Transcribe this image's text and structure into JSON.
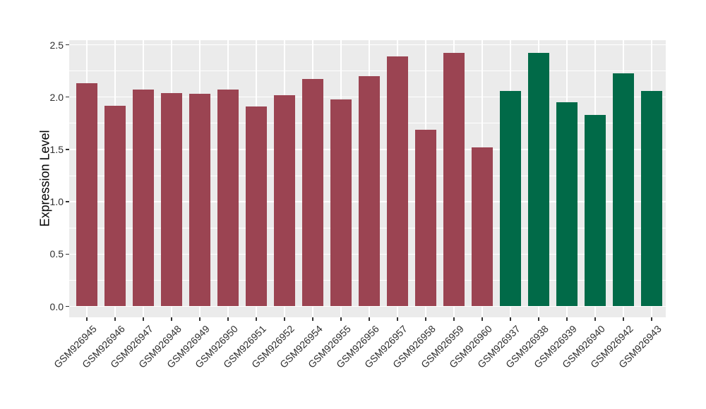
{
  "chart_data": {
    "type": "bar",
    "title": "",
    "xlabel": "",
    "ylabel": "Expression Level",
    "ylim": [
      0,
      2.5
    ],
    "ytick_labels": [
      "0.0",
      "0.5",
      "1.0",
      "1.5",
      "2.0",
      "2.5"
    ],
    "legend_position": "none",
    "panel_background": "#EBEBEB",
    "gridline_color": "#FFFFFF",
    "grid": {
      "horizontal_major": true,
      "horizontal_minor": true,
      "vertical_major": true
    },
    "categories": [
      "GSM926945",
      "GSM926946",
      "GSM926947",
      "GSM926948",
      "GSM926949",
      "GSM926950",
      "GSM926951",
      "GSM926952",
      "GSM926954",
      "GSM926955",
      "GSM926956",
      "GSM926957",
      "GSM926958",
      "GSM926959",
      "GSM926960",
      "GSM926937",
      "GSM926938",
      "GSM926939",
      "GSM926940",
      "GSM926942",
      "GSM926943"
    ],
    "values": [
      2.13,
      1.92,
      2.07,
      2.04,
      2.03,
      2.07,
      1.91,
      2.02,
      2.17,
      1.98,
      2.2,
      2.39,
      1.69,
      2.42,
      1.52,
      2.06,
      2.42,
      1.95,
      1.83,
      2.23,
      2.06
    ],
    "bar_groups": [
      "group1",
      "group1",
      "group1",
      "group1",
      "group1",
      "group1",
      "group1",
      "group1",
      "group1",
      "group1",
      "group1",
      "group1",
      "group1",
      "group1",
      "group1",
      "group2",
      "group2",
      "group2",
      "group2",
      "group2",
      "group2"
    ],
    "group_colors": {
      "group1": "#9B4452",
      "group2": "#016A48"
    }
  }
}
